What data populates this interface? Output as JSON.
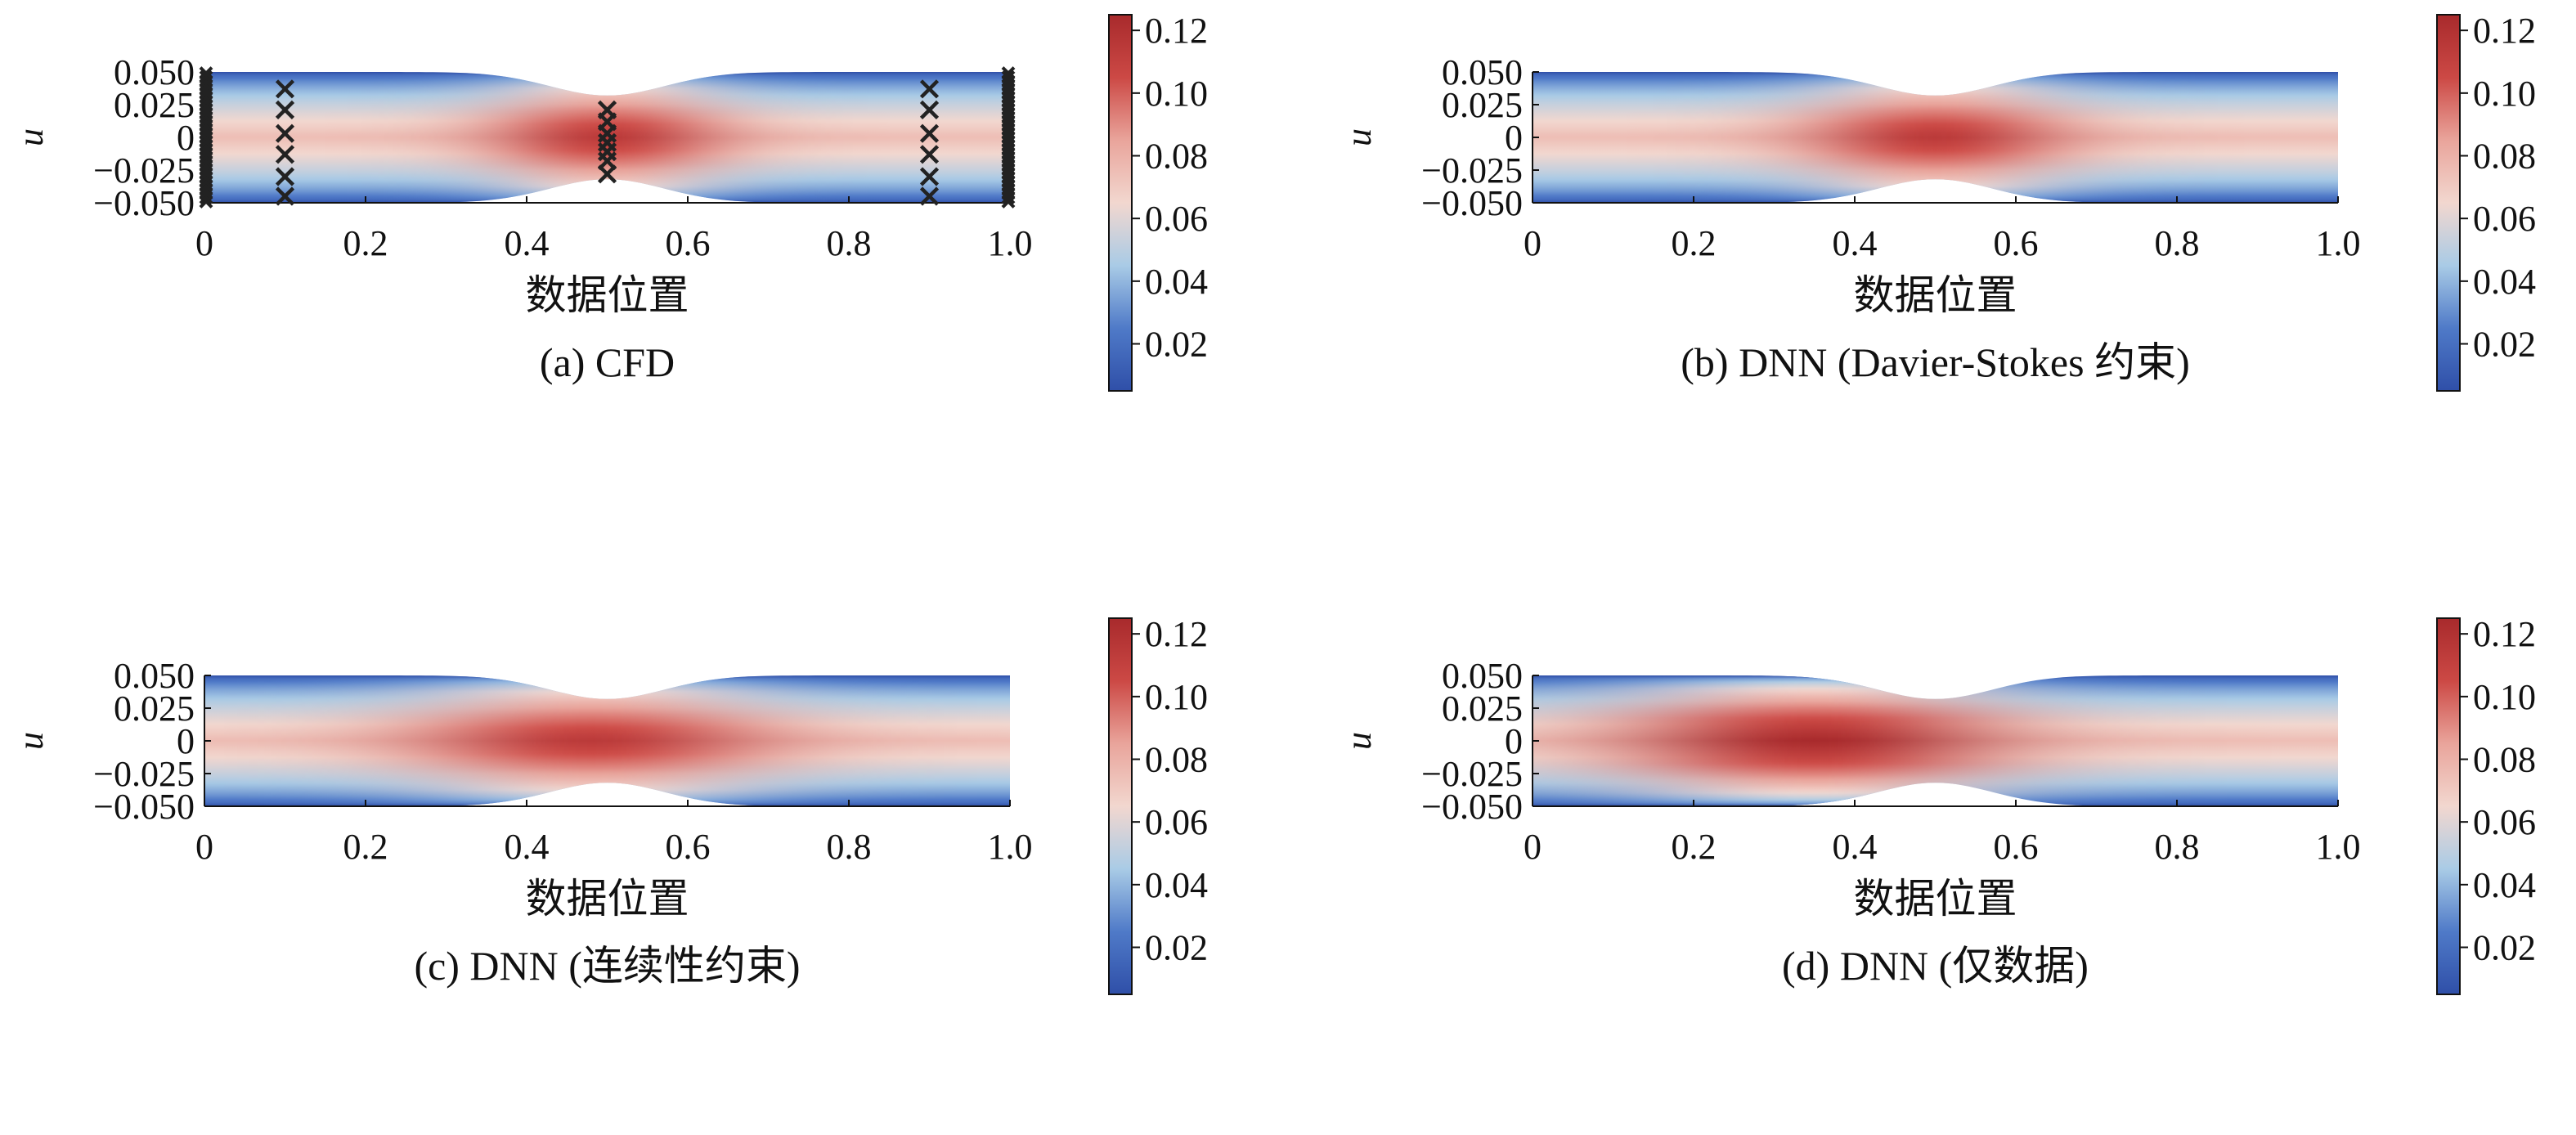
{
  "colorbar": {
    "min": 0.005,
    "max": 0.125,
    "ticks": [
      0.12,
      0.1,
      0.08,
      0.06,
      0.04,
      0.02
    ],
    "tick_labels": [
      "0.12",
      "0.10",
      "0.08",
      "0.06",
      "0.04",
      "0.02"
    ],
    "colors": [
      "#2f4fa8",
      "#4f7ac8",
      "#a9cbe6",
      "#f2d7cf",
      "#e9a49b",
      "#cc4945",
      "#a82a2c"
    ]
  },
  "chart_data": [
    {
      "type": "heatmap",
      "title": "(a) CFD",
      "xlabel": "数据位置",
      "ylabel": "u",
      "xlim": [
        0,
        1.0
      ],
      "ylim": [
        -0.05,
        0.05
      ],
      "xtick_labels": [
        "0",
        "0.2",
        "0.4",
        "0.6",
        "0.8",
        "1.0"
      ],
      "ytick_labels": [
        "0.050",
        "0.025",
        "0",
        "−0.025",
        "−0.050"
      ],
      "field": {
        "peak_x": 0.5,
        "peak_value": 0.115,
        "spread_x": 0.1
      },
      "sample_points": {
        "marker": "x",
        "x_0_1": [
          0.1,
          0.1,
          0.1,
          0.1,
          0.1,
          0.1
        ],
        "y_0_1": [
          0.037,
          0.021,
          0.003,
          -0.013,
          -0.03,
          -0.045
        ],
        "x_0_5": [
          0.5,
          0.5,
          0.5,
          0.5,
          0.5,
          0.5,
          0.5
        ],
        "y_0_5": [
          0.021,
          0.012,
          0.003,
          -0.004,
          -0.011,
          -0.018,
          -0.028
        ],
        "x_0_9": [
          0.9,
          0.9,
          0.9,
          0.9,
          0.9,
          0.9
        ],
        "y_0_9": [
          0.037,
          0.021,
          0.003,
          -0.013,
          -0.03,
          -0.045
        ],
        "boundary_x": [
          0,
          1.0
        ]
      }
    },
    {
      "type": "heatmap",
      "title": "(b) DNN (Davier-Stokes 约束)",
      "xlabel": "数据位置",
      "ylabel": "u",
      "xlim": [
        0,
        1.0
      ],
      "ylim": [
        -0.05,
        0.05
      ],
      "xtick_labels": [
        "0",
        "0.2",
        "0.4",
        "0.6",
        "0.8",
        "1.0"
      ],
      "ytick_labels": [
        "0.050",
        "0.025",
        "0",
        "−0.025",
        "−0.050"
      ],
      "field": {
        "peak_x": 0.5,
        "peak_value": 0.115,
        "spread_x": 0.11
      }
    },
    {
      "type": "heatmap",
      "title": "(c) DNN (连续性约束)",
      "xlabel": "数据位置",
      "ylabel": "u",
      "xlim": [
        0,
        1.0
      ],
      "ylim": [
        -0.05,
        0.05
      ],
      "xtick_labels": [
        "0",
        "0.2",
        "0.4",
        "0.6",
        "0.8",
        "1.0"
      ],
      "ytick_labels": [
        "0.050",
        "0.025",
        "0",
        "−0.025",
        "−0.050"
      ],
      "field": {
        "peak_x": 0.48,
        "peak_value": 0.115,
        "spread_x": 0.15
      }
    },
    {
      "type": "heatmap",
      "title": "(d) DNN (仅数据)",
      "xlabel": "数据位置",
      "ylabel": "u",
      "xlim": [
        0,
        1.0
      ],
      "ylim": [
        -0.05,
        0.05
      ],
      "xtick_labels": [
        "0",
        "0.2",
        "0.4",
        "0.6",
        "0.8",
        "1.0"
      ],
      "ytick_labels": [
        "0.050",
        "0.025",
        "0",
        "−0.025",
        "−0.050"
      ],
      "field": {
        "peak_x": 0.35,
        "peak_value": 0.125,
        "spread_x": 0.16
      }
    }
  ]
}
